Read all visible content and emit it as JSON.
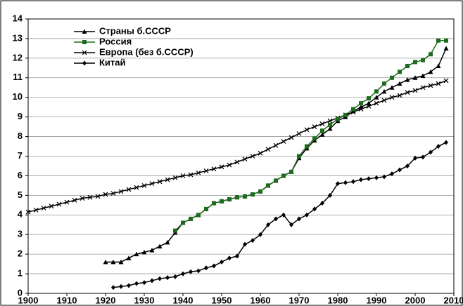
{
  "chart_data": {
    "type": "line",
    "x": [
      1900,
      1902,
      1904,
      1906,
      1908,
      1910,
      1912,
      1914,
      1916,
      1918,
      1920,
      1922,
      1924,
      1926,
      1928,
      1930,
      1932,
      1934,
      1936,
      1938,
      1940,
      1942,
      1944,
      1946,
      1948,
      1950,
      1952,
      1954,
      1956,
      1958,
      1960,
      1962,
      1964,
      1966,
      1968,
      1970,
      1972,
      1974,
      1976,
      1978,
      1980,
      1982,
      1984,
      1986,
      1988,
      1990,
      1992,
      1994,
      1996,
      1998,
      2000,
      2002,
      2004,
      2006,
      2008
    ],
    "series": [
      {
        "name": "Страны б.СССР",
        "color": "#000000",
        "marker": "triangle",
        "values": [
          null,
          null,
          null,
          null,
          null,
          null,
          null,
          null,
          null,
          null,
          1.6,
          1.6,
          1.6,
          1.8,
          2.0,
          2.1,
          2.2,
          2.4,
          2.6,
          3.1,
          3.6,
          3.8,
          4.0,
          4.3,
          4.6,
          4.7,
          4.8,
          4.9,
          4.95,
          5.05,
          5.2,
          5.5,
          5.75,
          6.0,
          6.2,
          6.9,
          7.4,
          7.8,
          8.1,
          8.4,
          8.8,
          9.0,
          9.3,
          9.5,
          9.7,
          10.0,
          10.3,
          10.5,
          10.7,
          10.9,
          11.0,
          11.1,
          11.3,
          11.6,
          12.5
        ]
      },
      {
        "name": "Россия",
        "color": "#1e6b1e",
        "marker": "square",
        "values": [
          null,
          null,
          null,
          null,
          null,
          null,
          null,
          null,
          null,
          null,
          null,
          null,
          null,
          null,
          null,
          null,
          null,
          null,
          null,
          3.2,
          3.6,
          3.8,
          4.0,
          4.3,
          4.6,
          4.7,
          4.8,
          4.9,
          4.95,
          5.05,
          5.2,
          5.5,
          5.75,
          6.0,
          6.2,
          7.0,
          7.5,
          7.9,
          8.3,
          8.6,
          8.9,
          9.1,
          9.4,
          9.7,
          9.95,
          10.3,
          10.7,
          11.0,
          11.3,
          11.6,
          11.8,
          11.9,
          12.2,
          12.9,
          12.9
        ]
      },
      {
        "name": "Европа (без б.СССР)",
        "color": "#000000",
        "marker": "x",
        "values": [
          4.15,
          4.25,
          4.35,
          4.45,
          4.55,
          4.65,
          4.75,
          4.85,
          4.9,
          4.95,
          5.05,
          5.1,
          5.2,
          5.3,
          5.4,
          5.5,
          5.6,
          5.7,
          5.8,
          5.9,
          6.0,
          6.05,
          6.15,
          6.25,
          6.35,
          6.45,
          6.55,
          6.7,
          6.85,
          7.0,
          7.15,
          7.35,
          7.55,
          7.75,
          7.95,
          8.15,
          8.35,
          8.5,
          8.65,
          8.8,
          8.95,
          9.1,
          9.25,
          9.4,
          9.55,
          9.7,
          9.85,
          10.0,
          10.1,
          10.25,
          10.35,
          10.5,
          10.6,
          10.7,
          10.85
        ]
      },
      {
        "name": "Китай",
        "color": "#000000",
        "marker": "diamond",
        "values": [
          null,
          null,
          null,
          null,
          null,
          null,
          null,
          null,
          null,
          null,
          null,
          0.3,
          0.35,
          0.4,
          0.5,
          0.55,
          0.65,
          0.75,
          0.8,
          0.85,
          1.0,
          1.1,
          1.15,
          1.3,
          1.4,
          1.6,
          1.8,
          1.9,
          2.5,
          2.7,
          3.0,
          3.5,
          3.8,
          4.0,
          3.5,
          3.8,
          4.0,
          4.3,
          4.6,
          5.0,
          5.6,
          5.65,
          5.7,
          5.8,
          5.85,
          5.9,
          5.95,
          6.1,
          6.3,
          6.5,
          6.9,
          6.95,
          7.2,
          7.5,
          7.7
        ]
      }
    ],
    "xlim": [
      1900,
      2010
    ],
    "xticks": [
      1900,
      1910,
      1920,
      1930,
      1940,
      1950,
      1960,
      1970,
      1980,
      1990,
      2000,
      2010
    ],
    "ylim": [
      0,
      14
    ],
    "yticks": [
      0,
      1,
      2,
      3,
      4,
      5,
      6,
      7,
      8,
      9,
      10,
      11,
      12,
      13,
      14
    ],
    "grid": true,
    "legend": "upper left"
  }
}
